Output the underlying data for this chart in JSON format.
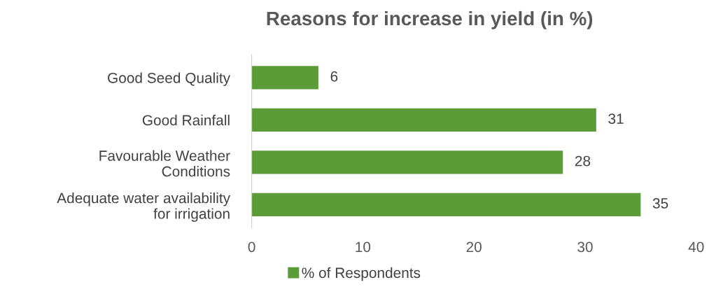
{
  "chart_data": {
    "type": "bar",
    "orientation": "horizontal",
    "title": "Reasons for increase in yield (in %)",
    "categories": [
      "Good Seed Quality",
      "Good Rainfall",
      "Favourable Weather\nConditions",
      "Adequate water availability\nfor irrigation"
    ],
    "series": [
      {
        "name": "% of Respondents",
        "color": "#5b9b38",
        "values": [
          6,
          31,
          28,
          35
        ]
      }
    ],
    "xlim": [
      0,
      40
    ],
    "xticks": [
      0,
      10,
      20,
      30,
      40
    ],
    "grid": false,
    "legend": "bottom",
    "data_labels": true
  }
}
